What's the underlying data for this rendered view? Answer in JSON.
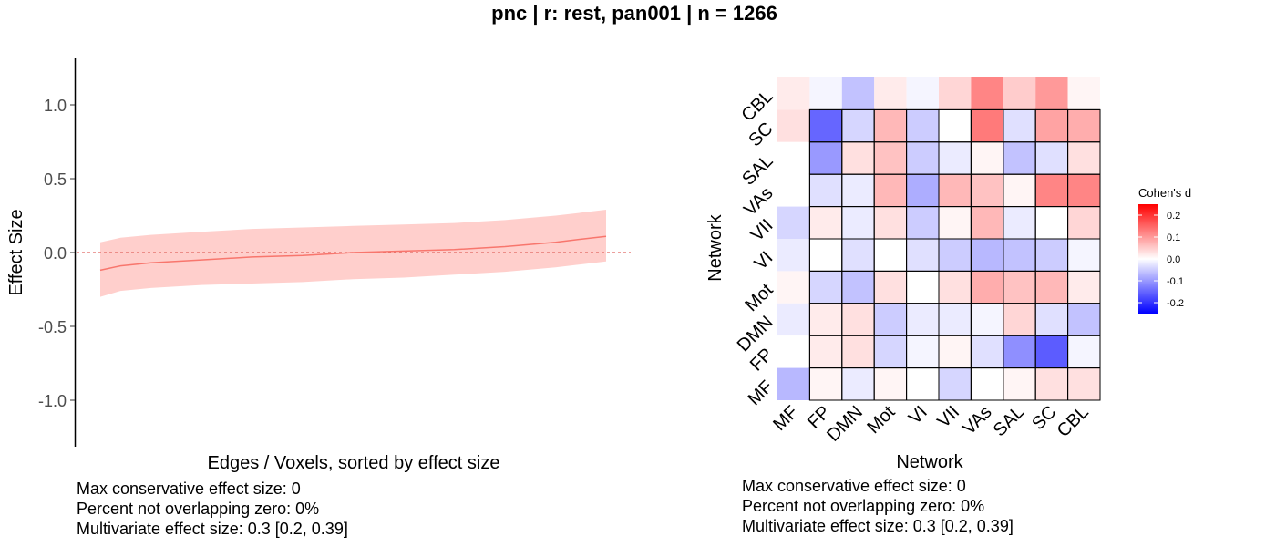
{
  "title": "pnc | r: rest, pan001 | n = 1266",
  "colors": {
    "line": "#F8766D",
    "ribbon": "#FFCFCC",
    "zero_line": "#E06660",
    "scale_low": "#0000FF",
    "scale_mid": "#FFFFFF",
    "scale_high": "#FF0000"
  },
  "chart_data": [
    {
      "type": "line",
      "title": "",
      "xlabel": "Edges / Voxels, sorted by effect size",
      "ylabel": "Effect Size",
      "ylim": [
        -1.3,
        1.3
      ],
      "yticks": [
        1.0,
        0.5,
        0.0,
        -0.5,
        -1.0
      ],
      "ytick_labels": [
        "1.0",
        "0.5",
        "0.0",
        "-0.5",
        "-1.0"
      ],
      "reference_line": {
        "y": 0,
        "style": "dashed"
      },
      "grid": false,
      "series": [
        {
          "kind": "line_with_ribbon",
          "x": [
            0,
            0.04,
            0.1,
            0.2,
            0.3,
            0.4,
            0.5,
            0.6,
            0.7,
            0.8,
            0.9,
            0.95,
            1.0
          ],
          "y": [
            -0.12,
            -0.09,
            -0.07,
            -0.05,
            -0.03,
            -0.02,
            0.0,
            0.01,
            0.02,
            0.04,
            0.07,
            0.09,
            0.11
          ],
          "lower": [
            -0.3,
            -0.26,
            -0.24,
            -0.22,
            -0.21,
            -0.2,
            -0.18,
            -0.17,
            -0.15,
            -0.13,
            -0.1,
            -0.08,
            -0.06
          ],
          "upper": [
            0.07,
            0.1,
            0.12,
            0.14,
            0.16,
            0.17,
            0.18,
            0.19,
            0.2,
            0.22,
            0.25,
            0.27,
            0.29
          ]
        }
      ]
    },
    {
      "type": "heatmap",
      "title": "",
      "xlabel": "Network",
      "ylabel": "Network",
      "x_labels": [
        "MF",
        "FP",
        "DMN",
        "Mot",
        "VI",
        "VII",
        "VAs",
        "SAL",
        "SC",
        "CBL"
      ],
      "y_labels_top_to_bottom": [
        "CBL",
        "SC",
        "SAL",
        "VAs",
        "VII",
        "VI",
        "Mot",
        "DMN",
        "FP",
        "MF"
      ],
      "values": [
        [
          0.02,
          -0.01,
          -0.06,
          0.02,
          -0.01,
          0.04,
          0.12,
          0.05,
          0.1,
          0.01
        ],
        [
          0.03,
          -0.15,
          -0.04,
          0.07,
          -0.05,
          0.0,
          0.13,
          -0.03,
          0.09,
          0.08
        ],
        [
          0.0,
          -0.1,
          0.03,
          0.06,
          -0.05,
          -0.02,
          0.01,
          -0.06,
          -0.03,
          0.03
        ],
        [
          0.0,
          -0.03,
          -0.02,
          0.07,
          -0.08,
          0.07,
          0.06,
          0.01,
          0.12,
          0.12
        ],
        [
          -0.04,
          0.02,
          -0.02,
          0.03,
          -0.05,
          0.01,
          0.07,
          -0.02,
          0.0,
          0.04
        ],
        [
          -0.02,
          0.0,
          -0.03,
          0.0,
          -0.03,
          -0.05,
          -0.07,
          -0.06,
          -0.05,
          -0.01
        ],
        [
          0.01,
          -0.04,
          -0.06,
          0.03,
          0.0,
          0.03,
          0.08,
          0.06,
          0.07,
          0.02
        ],
        [
          -0.02,
          0.02,
          0.03,
          -0.05,
          -0.02,
          -0.02,
          -0.01,
          0.04,
          -0.03,
          -0.06
        ],
        [
          0.0,
          0.02,
          0.03,
          -0.04,
          -0.01,
          0.01,
          -0.03,
          -0.11,
          -0.16,
          -0.01
        ],
        [
          -0.07,
          0.01,
          -0.02,
          0.01,
          0.0,
          -0.04,
          0.0,
          0.01,
          0.03,
          0.03
        ]
      ],
      "legend": {
        "title": "Cohen's d",
        "placement": "right",
        "range": [
          -0.25,
          0.25
        ],
        "ticks": [
          0.2,
          0.1,
          0.0,
          -0.1,
          -0.2
        ],
        "tick_labels": [
          "0.2",
          "0.1",
          "0.0",
          "-0.1",
          "-0.2"
        ]
      }
    }
  ],
  "captions": {
    "left": [
      "Max conservative effect size: 0",
      "Percent not overlapping zero: 0%",
      "Multivariate effect size: 0.3 [0.2, 0.39]"
    ],
    "right": [
      "Max conservative effect size: 0",
      "Percent not overlapping zero: 0%",
      "Multivariate effect size: 0.3 [0.2, 0.39]"
    ]
  }
}
